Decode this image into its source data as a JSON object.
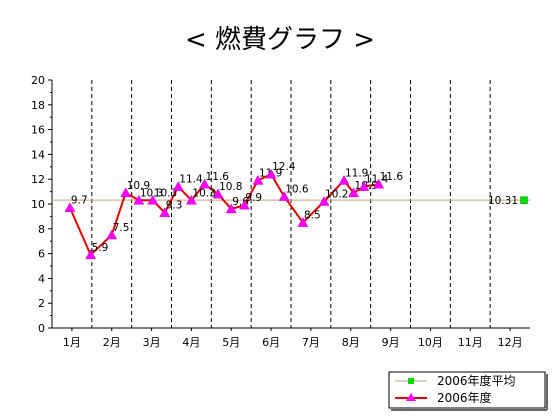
{
  "chart_data": {
    "type": "line",
    "title": "< 燃費グラフ >",
    "xlabel": "",
    "ylabel": "",
    "ylim": [
      0,
      20
    ],
    "ytick_step": 2,
    "categories": [
      "1月",
      "2月",
      "3月",
      "4月",
      "5月",
      "6月",
      "7月",
      "8月",
      "9月",
      "10月",
      "11月",
      "12月"
    ],
    "xlim": [
      0,
      12
    ],
    "grid": "vertical dashed lines between months",
    "legend_position": "bottom-right",
    "series": [
      {
        "name": "2006年度",
        "color": "#e00000",
        "marker_color": "#ff00ff",
        "marker": "triangle",
        "x": [
          0.45,
          0.97,
          1.5,
          1.85,
          2.18,
          2.53,
          2.83,
          3.17,
          3.5,
          3.83,
          4.17,
          4.5,
          4.83,
          5.17,
          5.5,
          5.83,
          6.3,
          6.83,
          7.33,
          7.57,
          7.83,
          8.2,
          8.5
        ],
        "y": [
          9.7,
          5.9,
          7.5,
          10.9,
          10.3,
          10.3,
          9.3,
          11.4,
          10.3,
          11.6,
          10.8,
          9.6,
          9.9,
          11.9,
          12.4,
          10.6,
          8.5,
          10.2,
          11.9,
          10.9,
          11.4,
          11.6,
          null
        ],
        "labels": [
          "9.7",
          "5.9",
          "7.5",
          "10.9",
          "10.3",
          "10.3",
          "9.3",
          "11.4",
          "10.3",
          "11.6",
          "10.8",
          "9.6",
          "9.9",
          "11.9",
          "12.4",
          "10.6",
          "8.5",
          "10.2",
          "11.9",
          "10.9",
          "11.4",
          "11.6",
          ""
        ]
      },
      {
        "name": "2006年度平均",
        "color": "#c9a27a",
        "marker_color": "#00dd00",
        "marker": "square",
        "value": 10.31,
        "label": "10.31"
      }
    ]
  }
}
